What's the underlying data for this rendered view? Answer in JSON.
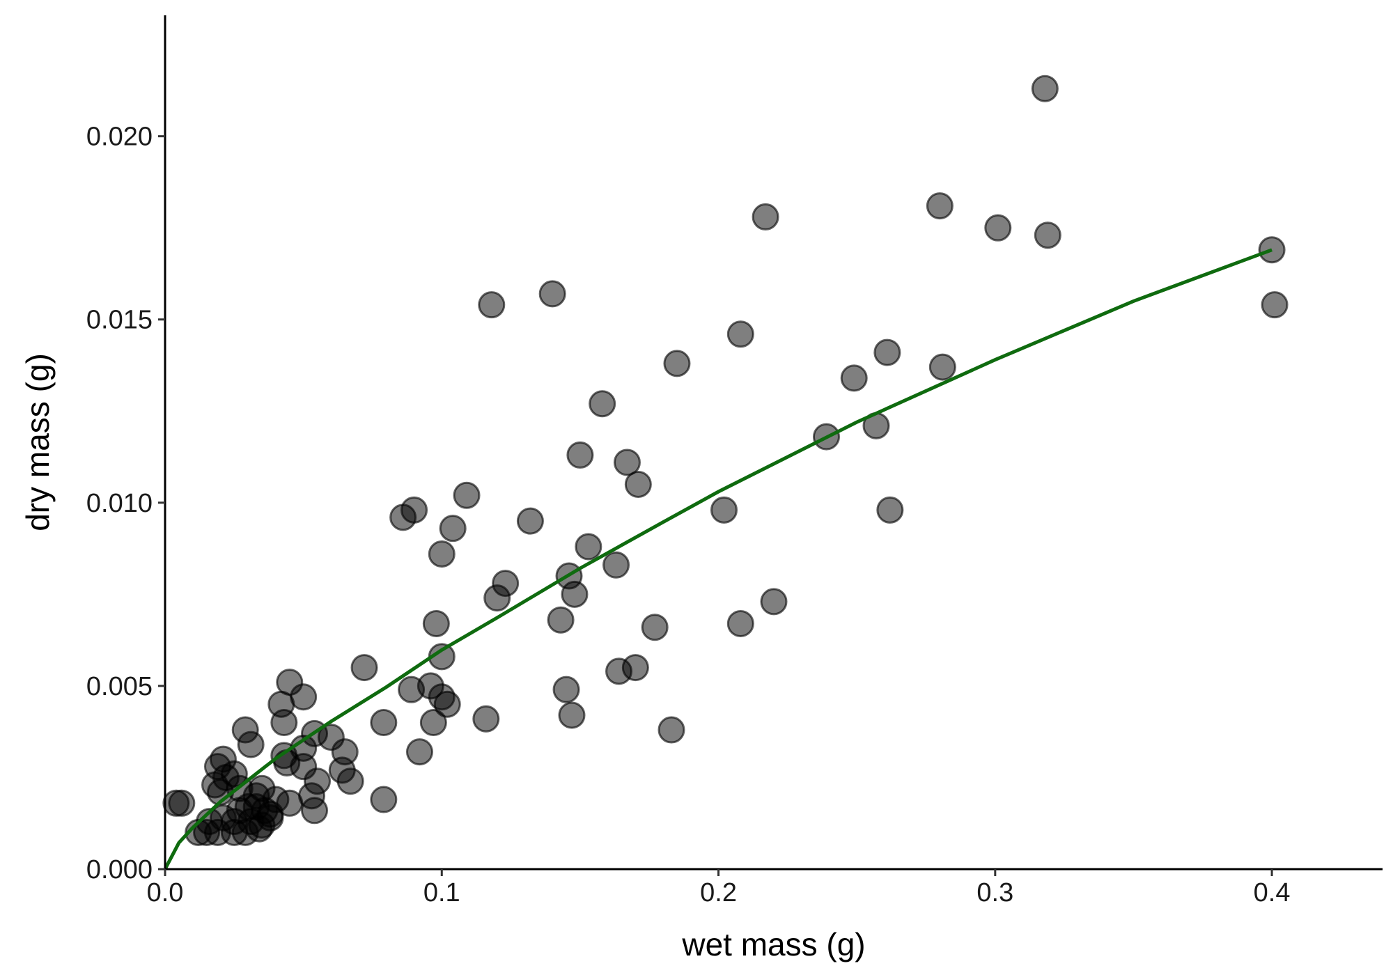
{
  "chart_data": {
    "type": "scatter",
    "xlabel": "wet mass (g)",
    "ylabel": "dry mass (g)",
    "xlim": [
      0,
      0.44
    ],
    "ylim": [
      0,
      0.0233
    ],
    "x_ticks": [
      {
        "value": 0.0,
        "label": "0.0"
      },
      {
        "value": 0.1,
        "label": "0.1"
      },
      {
        "value": 0.2,
        "label": "0.2"
      },
      {
        "value": 0.3,
        "label": "0.3"
      },
      {
        "value": 0.4,
        "label": "0.4"
      }
    ],
    "y_ticks": [
      {
        "value": 0.0,
        "label": "0.000"
      },
      {
        "value": 0.005,
        "label": "0.005"
      },
      {
        "value": 0.01,
        "label": "0.010"
      },
      {
        "value": 0.015,
        "label": "0.015"
      },
      {
        "value": 0.02,
        "label": "0.020"
      }
    ],
    "grid": false,
    "point_color": "#000000",
    "point_opacity": 0.5,
    "fit_color": "#0f6b0f",
    "points": [
      [
        0.318,
        0.0213
      ],
      [
        0.217,
        0.0178
      ],
      [
        0.28,
        0.0181
      ],
      [
        0.301,
        0.0175
      ],
      [
        0.319,
        0.0173
      ],
      [
        0.4,
        0.0169
      ],
      [
        0.401,
        0.0154
      ],
      [
        0.118,
        0.0154
      ],
      [
        0.14,
        0.0157
      ],
      [
        0.208,
        0.0146
      ],
      [
        0.185,
        0.0138
      ],
      [
        0.261,
        0.0141
      ],
      [
        0.281,
        0.0137
      ],
      [
        0.249,
        0.0134
      ],
      [
        0.158,
        0.0127
      ],
      [
        0.239,
        0.0118
      ],
      [
        0.257,
        0.0121
      ],
      [
        0.15,
        0.0113
      ],
      [
        0.167,
        0.0111
      ],
      [
        0.171,
        0.0105
      ],
      [
        0.109,
        0.0102
      ],
      [
        0.09,
        0.0098
      ],
      [
        0.086,
        0.0096
      ],
      [
        0.132,
        0.0095
      ],
      [
        0.202,
        0.0098
      ],
      [
        0.262,
        0.0098
      ],
      [
        0.104,
        0.0093
      ],
      [
        0.153,
        0.0088
      ],
      [
        0.1,
        0.0086
      ],
      [
        0.163,
        0.0083
      ],
      [
        0.146,
        0.008
      ],
      [
        0.123,
        0.0078
      ],
      [
        0.12,
        0.0074
      ],
      [
        0.148,
        0.0075
      ],
      [
        0.22,
        0.0073
      ],
      [
        0.143,
        0.0068
      ],
      [
        0.098,
        0.0067
      ],
      [
        0.208,
        0.0067
      ],
      [
        0.177,
        0.0066
      ],
      [
        0.1,
        0.0058
      ],
      [
        0.072,
        0.0055
      ],
      [
        0.164,
        0.0054
      ],
      [
        0.17,
        0.0055
      ],
      [
        0.045,
        0.0051
      ],
      [
        0.05,
        0.0047
      ],
      [
        0.089,
        0.0049
      ],
      [
        0.096,
        0.005
      ],
      [
        0.1,
        0.0047
      ],
      [
        0.102,
        0.0045
      ],
      [
        0.145,
        0.0049
      ],
      [
        0.042,
        0.0045
      ],
      [
        0.147,
        0.0042
      ],
      [
        0.116,
        0.0041
      ],
      [
        0.079,
        0.004
      ],
      [
        0.043,
        0.004
      ],
      [
        0.097,
        0.004
      ],
      [
        0.183,
        0.0038
      ],
      [
        0.029,
        0.0038
      ],
      [
        0.054,
        0.0037
      ],
      [
        0.06,
        0.0036
      ],
      [
        0.031,
        0.0034
      ],
      [
        0.092,
        0.0032
      ],
      [
        0.065,
        0.0032
      ],
      [
        0.043,
        0.0031
      ],
      [
        0.05,
        0.0033
      ],
      [
        0.021,
        0.003
      ],
      [
        0.044,
        0.0029
      ],
      [
        0.05,
        0.0028
      ],
      [
        0.019,
        0.0028
      ],
      [
        0.064,
        0.0027
      ],
      [
        0.025,
        0.0026
      ],
      [
        0.022,
        0.0025
      ],
      [
        0.018,
        0.0023
      ],
      [
        0.067,
        0.0024
      ],
      [
        0.055,
        0.0024
      ],
      [
        0.027,
        0.0022
      ],
      [
        0.035,
        0.0022
      ],
      [
        0.053,
        0.002
      ],
      [
        0.04,
        0.0019
      ],
      [
        0.079,
        0.0019
      ],
      [
        0.004,
        0.0018
      ],
      [
        0.006,
        0.0018
      ],
      [
        0.045,
        0.0018
      ],
      [
        0.033,
        0.0017
      ],
      [
        0.036,
        0.0016
      ],
      [
        0.054,
        0.0016
      ],
      [
        0.021,
        0.0014
      ],
      [
        0.025,
        0.0013
      ],
      [
        0.031,
        0.0013
      ],
      [
        0.038,
        0.0014
      ],
      [
        0.035,
        0.0012
      ],
      [
        0.015,
        0.001
      ],
      [
        0.012,
        0.001
      ],
      [
        0.019,
        0.001
      ],
      [
        0.025,
        0.001
      ],
      [
        0.029,
        0.001
      ],
      [
        0.034,
        0.0011
      ],
      [
        0.03,
        0.0017
      ],
      [
        0.016,
        0.0013
      ],
      [
        0.02,
        0.0021
      ],
      [
        0.038,
        0.0015
      ],
      [
        0.033,
        0.002
      ],
      [
        0.027,
        0.0016
      ]
    ],
    "fit_line": [
      [
        0.0,
        0.0
      ],
      [
        0.005,
        0.00072
      ],
      [
        0.01,
        0.00113
      ],
      [
        0.02,
        0.00184
      ],
      [
        0.04,
        0.00302
      ],
      [
        0.06,
        0.00403
      ],
      [
        0.08,
        0.00497
      ],
      [
        0.1,
        0.00598
      ],
      [
        0.12,
        0.00686
      ],
      [
        0.15,
        0.00821
      ],
      [
        0.18,
        0.00947
      ],
      [
        0.2,
        0.0103
      ],
      [
        0.25,
        0.0122
      ],
      [
        0.3,
        0.0139
      ],
      [
        0.35,
        0.0155
      ],
      [
        0.4,
        0.0169
      ]
    ]
  }
}
